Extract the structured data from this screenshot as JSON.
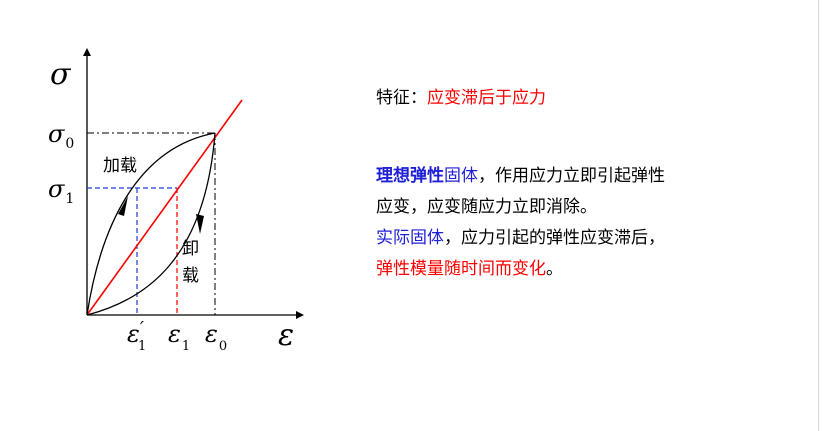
{
  "diagram": {
    "y_axis_symbol": "σ",
    "x_axis_symbol": "ε",
    "sigma0_base": "σ",
    "sigma0_sub": "0",
    "sigma1_base": "σ",
    "sigma1_sub": "1",
    "eps1p_base": "ε",
    "eps1p_prime": "′",
    "eps1p_sub": "1",
    "eps1_base": "ε",
    "eps1_sub": "1",
    "eps0_base": "ε",
    "eps0_sub": "0",
    "loading_label": "加载",
    "unloading_label_1": "卸",
    "unloading_label_2": "载",
    "colors": {
      "elastic_line": "#ff0000",
      "sigma1_guides": "#1f3fd6",
      "eps1_guide": "#ff0000",
      "curves": "#000000"
    }
  },
  "text": {
    "feature_prefix": "特征：",
    "feature_value": "应变滞后于应力",
    "ideal_label": "理想弹性",
    "ideal_noun": "固体",
    "ideal_rest_1": "，作用应力立即引起弹性",
    "ideal_rest_2": "应变，应变随应力立即消除。",
    "real_label": "实际固体",
    "real_rest": "，应力引起的弹性应变滞后，",
    "real_conclusion": "弹性模量随时间而变化",
    "real_end": "。"
  }
}
